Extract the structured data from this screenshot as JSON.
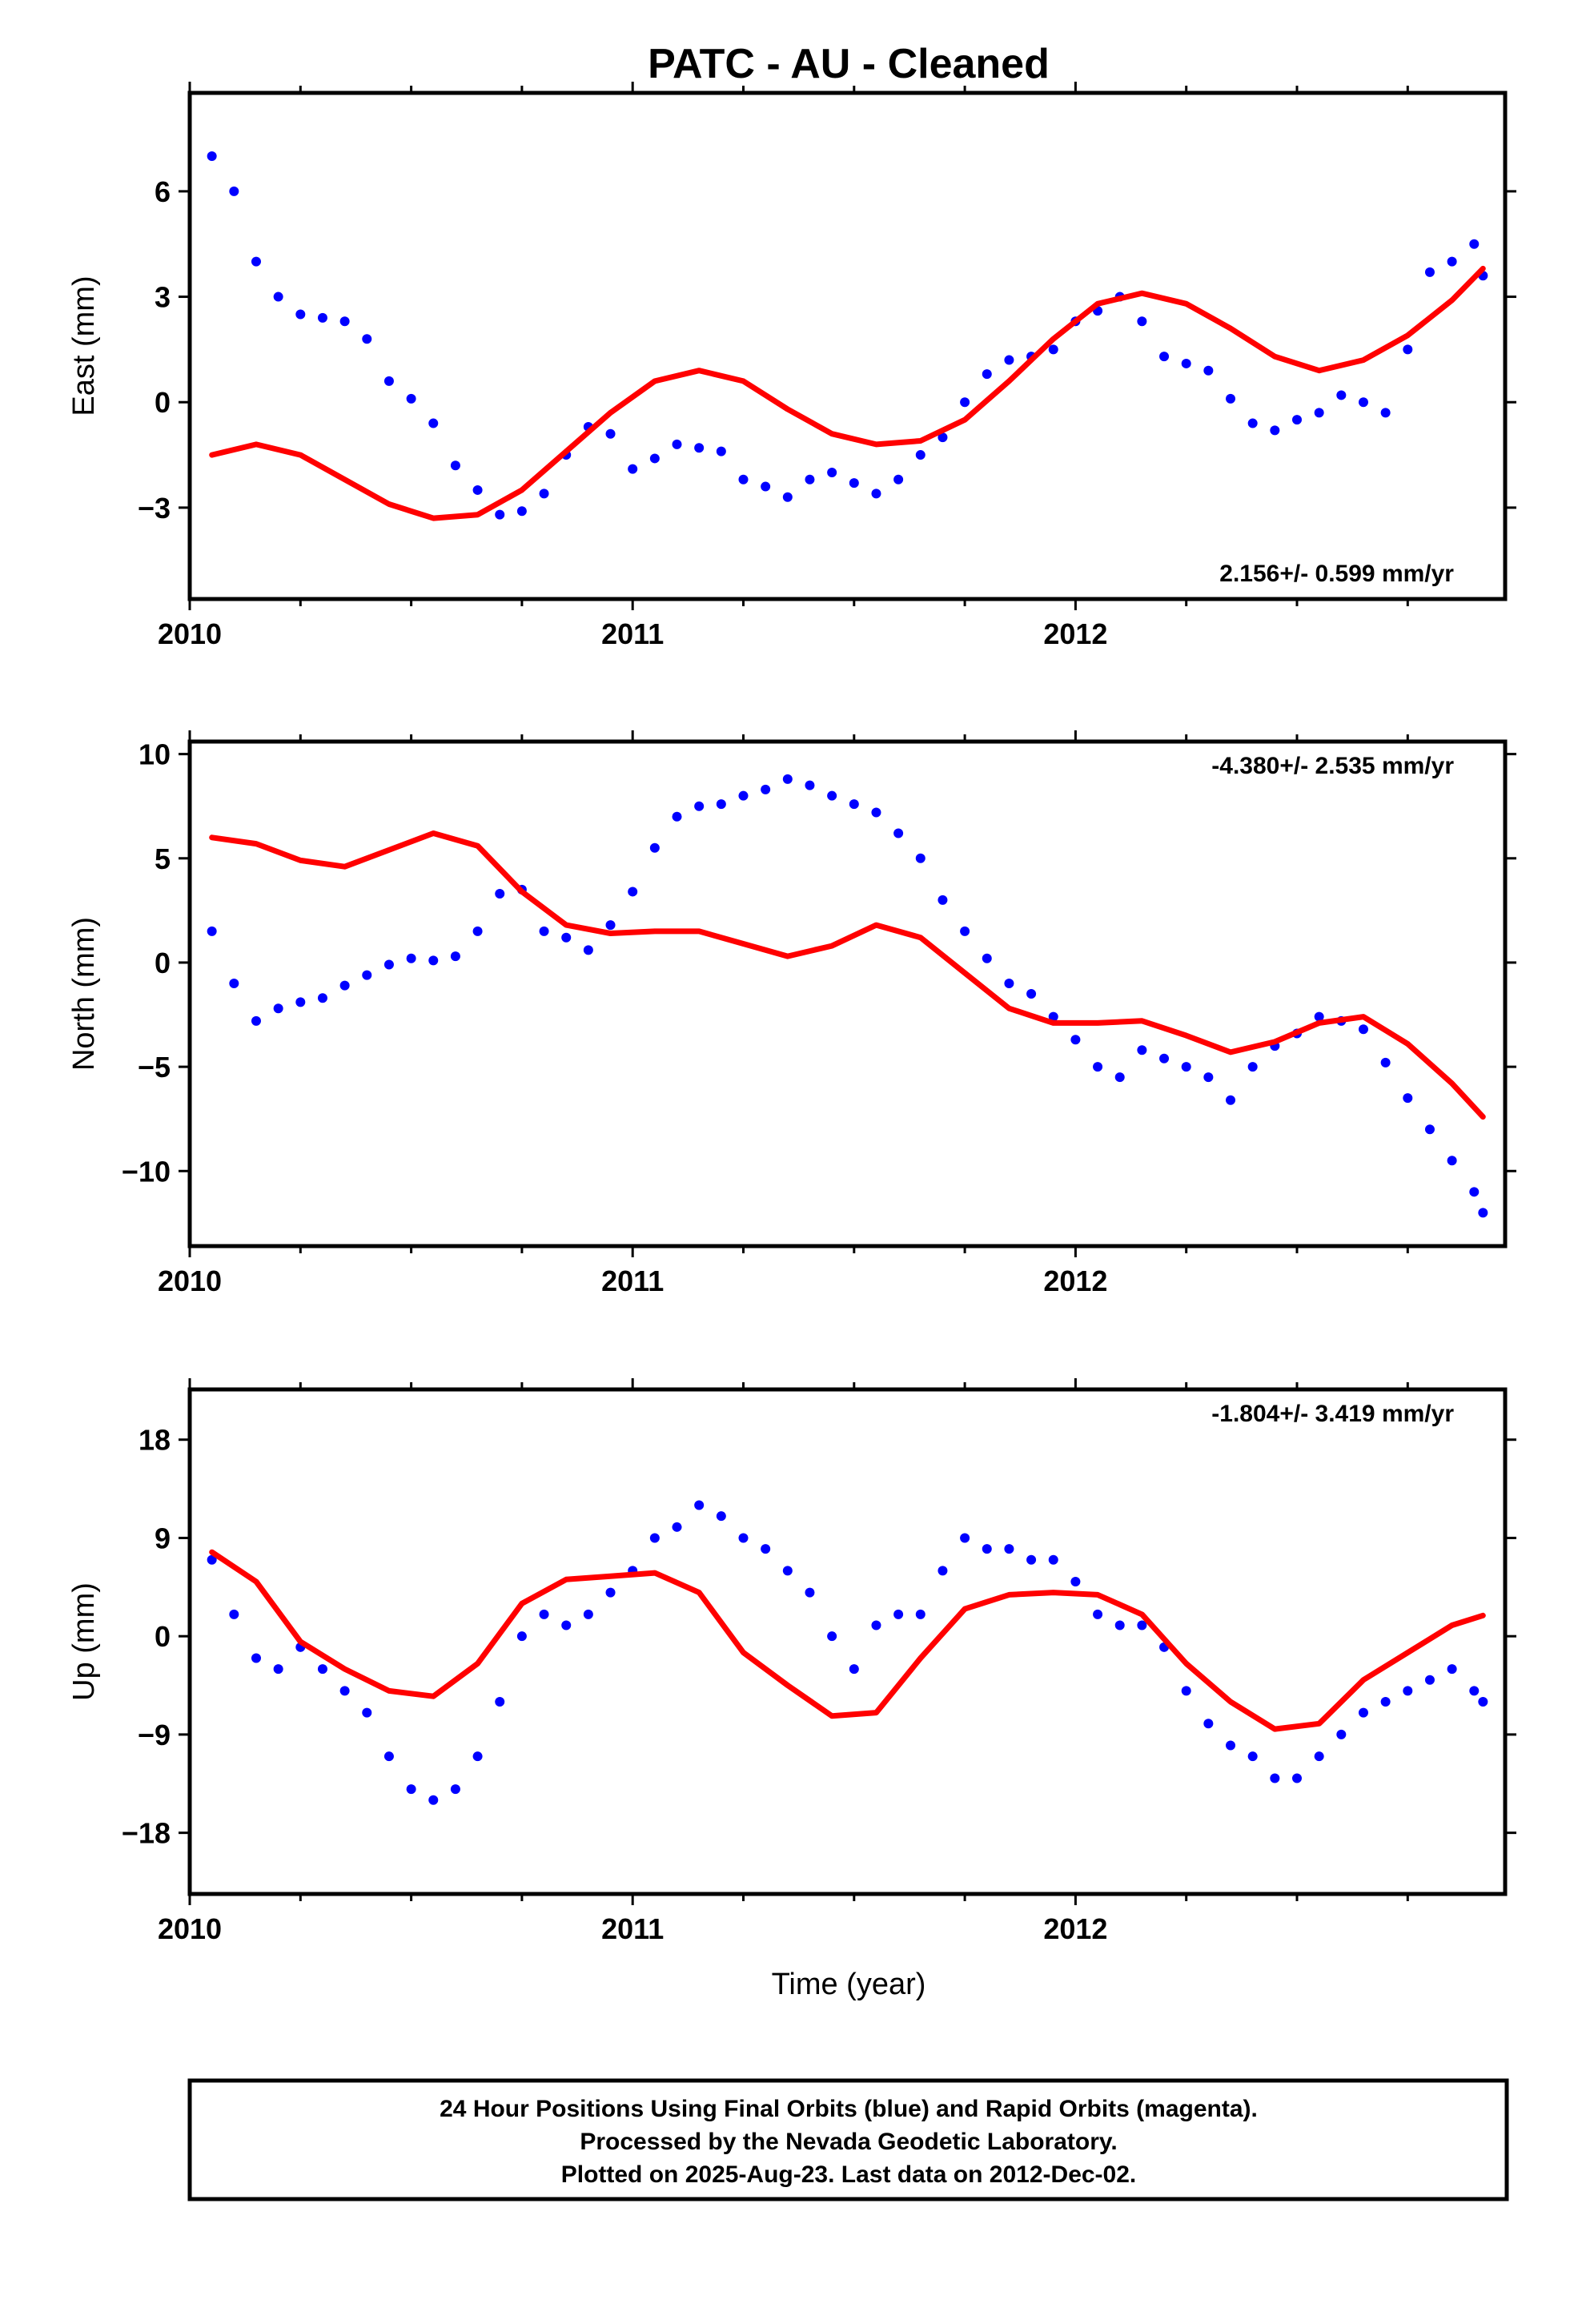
{
  "title": "PATC  - AU - Cleaned",
  "xlabel": "Time (year)",
  "footnote": [
    "24 Hour Positions Using Final Orbits (blue) and Rapid Orbits (magenta).",
    "Processed by the Nevada Geodetic Laboratory.",
    "Plotted on 2025-Aug-23. Last data on 2012-Dec-02."
  ],
  "colors": {
    "points": "#0000ff",
    "model": "#ff0000",
    "frame": "#000000"
  },
  "chart_data": [
    {
      "type": "scatter",
      "ylabel": "East (mm)",
      "rate_text": "2.156+/- 0.599 mm/yr",
      "xlim": [
        2010.0,
        2012.97
      ],
      "ylim": [
        -5.6,
        8.8
      ],
      "xticks": [
        2010,
        2011,
        2012
      ],
      "xtick_labels": [
        "2010",
        "2011",
        "2012"
      ],
      "yticks": [
        -3,
        0,
        3,
        6
      ],
      "ytick_labels": [
        "−3",
        "0",
        "3",
        "6"
      ],
      "series": [
        {
          "kind": "points",
          "x": [
            2010.05,
            2010.1,
            2010.15,
            2010.2,
            2010.25,
            2010.3,
            2010.35,
            2010.4,
            2010.45,
            2010.5,
            2010.55,
            2010.6,
            2010.65,
            2010.7,
            2010.75,
            2010.8,
            2010.85,
            2010.9,
            2010.95,
            2011.0,
            2011.05,
            2011.1,
            2011.15,
            2011.2,
            2011.25,
            2011.3,
            2011.35,
            2011.4,
            2011.45,
            2011.5,
            2011.55,
            2011.6,
            2011.65,
            2011.7,
            2011.75,
            2011.8,
            2011.85,
            2011.9,
            2011.95,
            2012.0,
            2012.05,
            2012.1,
            2012.15,
            2012.2,
            2012.25,
            2012.3,
            2012.35,
            2012.4,
            2012.45,
            2012.5,
            2012.55,
            2012.6,
            2012.65,
            2012.7,
            2012.75,
            2012.8,
            2012.85,
            2012.9,
            2012.92
          ],
          "y": [
            7.0,
            6.0,
            4.0,
            3.0,
            2.5,
            2.4,
            2.3,
            1.8,
            0.6,
            0.1,
            -0.6,
            -1.8,
            -2.5,
            -3.2,
            -3.1,
            -2.6,
            -1.5,
            -0.7,
            -0.9,
            -1.9,
            -1.6,
            -1.2,
            -1.3,
            -1.4,
            -2.2,
            -2.4,
            -2.7,
            -2.2,
            -2.0,
            -2.3,
            -2.6,
            -2.2,
            -1.5,
            -1.0,
            0.0,
            0.8,
            1.2,
            1.3,
            1.5,
            2.3,
            2.6,
            3.0,
            2.3,
            1.3,
            1.1,
            0.9,
            0.1,
            -0.6,
            -0.8,
            -0.5,
            -0.3,
            0.2,
            0.0,
            -0.3,
            1.5,
            3.7,
            4.0,
            4.5,
            3.6
          ]
        },
        {
          "kind": "model",
          "x": [
            2010.05,
            2010.15,
            2010.25,
            2010.35,
            2010.45,
            2010.55,
            2010.65,
            2010.75,
            2010.85,
            2010.95,
            2011.05,
            2011.15,
            2011.25,
            2011.35,
            2011.45,
            2011.55,
            2011.65,
            2011.75,
            2011.85,
            2011.95,
            2012.05,
            2012.15,
            2012.25,
            2012.35,
            2012.45,
            2012.55,
            2012.65,
            2012.75,
            2012.85,
            2012.92
          ],
          "y": [
            -1.5,
            -1.2,
            -1.5,
            -2.2,
            -2.9,
            -3.3,
            -3.2,
            -2.5,
            -1.4,
            -0.3,
            0.6,
            0.9,
            0.6,
            -0.2,
            -0.9,
            -1.2,
            -1.1,
            -0.5,
            0.6,
            1.8,
            2.8,
            3.1,
            2.8,
            2.1,
            1.3,
            0.9,
            1.2,
            1.9,
            2.9,
            3.8
          ]
        }
      ]
    },
    {
      "type": "scatter",
      "ylabel": "North (mm)",
      "rate_text": "-4.380+/- 2.535 mm/yr",
      "xlim": [
        2010.0,
        2012.97
      ],
      "ylim": [
        -13.6,
        10.6
      ],
      "xticks": [
        2010,
        2011,
        2012
      ],
      "xtick_labels": [
        "2010",
        "2011",
        "2012"
      ],
      "yticks": [
        -10,
        -5,
        0,
        5,
        10
      ],
      "ytick_labels": [
        "−10",
        "−5",
        "0",
        "5",
        "10"
      ],
      "series": [
        {
          "kind": "points",
          "x": [
            2010.05,
            2010.1,
            2010.15,
            2010.2,
            2010.25,
            2010.3,
            2010.35,
            2010.4,
            2010.45,
            2010.5,
            2010.55,
            2010.6,
            2010.65,
            2010.7,
            2010.75,
            2010.8,
            2010.85,
            2010.9,
            2010.95,
            2011.0,
            2011.05,
            2011.1,
            2011.15,
            2011.2,
            2011.25,
            2011.3,
            2011.35,
            2011.4,
            2011.45,
            2011.5,
            2011.55,
            2011.6,
            2011.65,
            2011.7,
            2011.75,
            2011.8,
            2011.85,
            2011.9,
            2011.95,
            2012.0,
            2012.05,
            2012.1,
            2012.15,
            2012.2,
            2012.25,
            2012.3,
            2012.35,
            2012.4,
            2012.45,
            2012.5,
            2012.55,
            2012.6,
            2012.65,
            2012.7,
            2012.75,
            2012.8,
            2012.85,
            2012.9,
            2012.92
          ],
          "y": [
            1.5,
            -1.0,
            -2.8,
            -2.2,
            -1.9,
            -1.7,
            -1.1,
            -0.6,
            -0.1,
            0.2,
            0.1,
            0.3,
            1.5,
            3.3,
            3.5,
            1.5,
            1.2,
            0.6,
            1.8,
            3.4,
            5.5,
            7.0,
            7.5,
            7.6,
            8.0,
            8.3,
            8.8,
            8.5,
            8.0,
            7.6,
            7.2,
            6.2,
            5.0,
            3.0,
            1.5,
            0.2,
            -1.0,
            -1.5,
            -2.6,
            -3.7,
            -5.0,
            -5.5,
            -4.2,
            -4.6,
            -5.0,
            -5.5,
            -6.6,
            -5.0,
            -4.0,
            -3.4,
            -2.6,
            -2.8,
            -3.2,
            -4.8,
            -6.5,
            -8.0,
            -9.5,
            -11.0,
            -12.0
          ]
        },
        {
          "kind": "model",
          "x": [
            2010.05,
            2010.15,
            2010.25,
            2010.35,
            2010.45,
            2010.55,
            2010.65,
            2010.75,
            2010.85,
            2010.95,
            2011.05,
            2011.15,
            2011.25,
            2011.35,
            2011.45,
            2011.55,
            2011.65,
            2011.75,
            2011.85,
            2011.95,
            2012.05,
            2012.15,
            2012.25,
            2012.35,
            2012.45,
            2012.55,
            2012.65,
            2012.75,
            2012.85,
            2012.92
          ],
          "y": [
            6.0,
            5.7,
            4.9,
            4.6,
            5.4,
            6.2,
            5.6,
            3.4,
            1.8,
            1.4,
            1.5,
            1.5,
            0.9,
            0.3,
            0.8,
            1.8,
            1.2,
            -0.5,
            -2.2,
            -2.9,
            -2.9,
            -2.8,
            -3.5,
            -4.3,
            -3.8,
            -2.9,
            -2.6,
            -3.9,
            -5.8,
            -7.4
          ]
        }
      ]
    },
    {
      "type": "scatter",
      "ylabel": "Up (mm)",
      "rate_text": "-1.804+/- 3.419 mm/yr",
      "xlim": [
        2010.0,
        2012.97
      ],
      "ylim": [
        -23.6,
        22.6
      ],
      "xticks": [
        2010,
        2011,
        2012
      ],
      "xtick_labels": [
        "2010",
        "2011",
        "2012"
      ],
      "yticks": [
        -18,
        -9,
        0,
        9,
        18
      ],
      "ytick_labels": [
        "−18",
        "−9",
        "0",
        "9",
        "18"
      ],
      "series": [
        {
          "kind": "points",
          "x": [
            2010.05,
            2010.1,
            2010.15,
            2010.2,
            2010.25,
            2010.3,
            2010.35,
            2010.4,
            2010.45,
            2010.5,
            2010.55,
            2010.6,
            2010.65,
            2010.7,
            2010.75,
            2010.8,
            2010.85,
            2010.9,
            2010.95,
            2011.0,
            2011.05,
            2011.1,
            2011.15,
            2011.2,
            2011.25,
            2011.3,
            2011.35,
            2011.4,
            2011.45,
            2011.5,
            2011.55,
            2011.6,
            2011.65,
            2011.7,
            2011.75,
            2011.8,
            2011.85,
            2011.9,
            2011.95,
            2012.0,
            2012.05,
            2012.1,
            2012.15,
            2012.2,
            2012.25,
            2012.3,
            2012.35,
            2012.4,
            2012.45,
            2012.5,
            2012.55,
            2012.6,
            2012.65,
            2012.7,
            2012.75,
            2012.8,
            2012.85,
            2012.9,
            2012.92
          ],
          "y": [
            7.0,
            2.0,
            -2.0,
            -3.0,
            -1.0,
            -3.0,
            -5.0,
            -7.0,
            -11.0,
            -14.0,
            -15.0,
            -14.0,
            -11.0,
            -6.0,
            0.0,
            2.0,
            1.0,
            2.0,
            4.0,
            6.0,
            9.0,
            10.0,
            12.0,
            11.0,
            9.0,
            8.0,
            6.0,
            4.0,
            0.0,
            -3.0,
            1.0,
            2.0,
            2.0,
            6.0,
            9.0,
            8.0,
            8.0,
            7.0,
            7.0,
            5.0,
            2.0,
            1.0,
            1.0,
            -1.0,
            -5.0,
            -8.0,
            -10.0,
            -11.0,
            -13.0,
            -13.0,
            -11.0,
            -9.0,
            -7.0,
            -6.0,
            -5.0,
            -4.0,
            -3.0,
            -5.0,
            -6.0
          ]
        },
        {
          "kind": "model",
          "x": [
            2010.05,
            2010.15,
            2010.25,
            2010.35,
            2010.45,
            2010.55,
            2010.65,
            2010.75,
            2010.85,
            2010.95,
            2011.05,
            2011.15,
            2011.25,
            2011.35,
            2011.45,
            2011.55,
            2011.65,
            2011.75,
            2011.85,
            2011.95,
            2012.05,
            2012.15,
            2012.25,
            2012.35,
            2012.45,
            2012.55,
            2012.65,
            2012.75,
            2012.85,
            2012.92
          ],
          "y": [
            7.7,
            5.0,
            -0.5,
            -3.0,
            -5.0,
            -5.5,
            -2.5,
            3.0,
            5.2,
            5.5,
            5.8,
            4.0,
            -1.5,
            -4.5,
            -7.3,
            -7.0,
            -2.0,
            2.5,
            3.8,
            4.0,
            3.8,
            2.0,
            -2.5,
            -6.0,
            -8.5,
            -8.0,
            -4.0,
            -1.5,
            1.0,
            1.9
          ]
        }
      ]
    }
  ]
}
